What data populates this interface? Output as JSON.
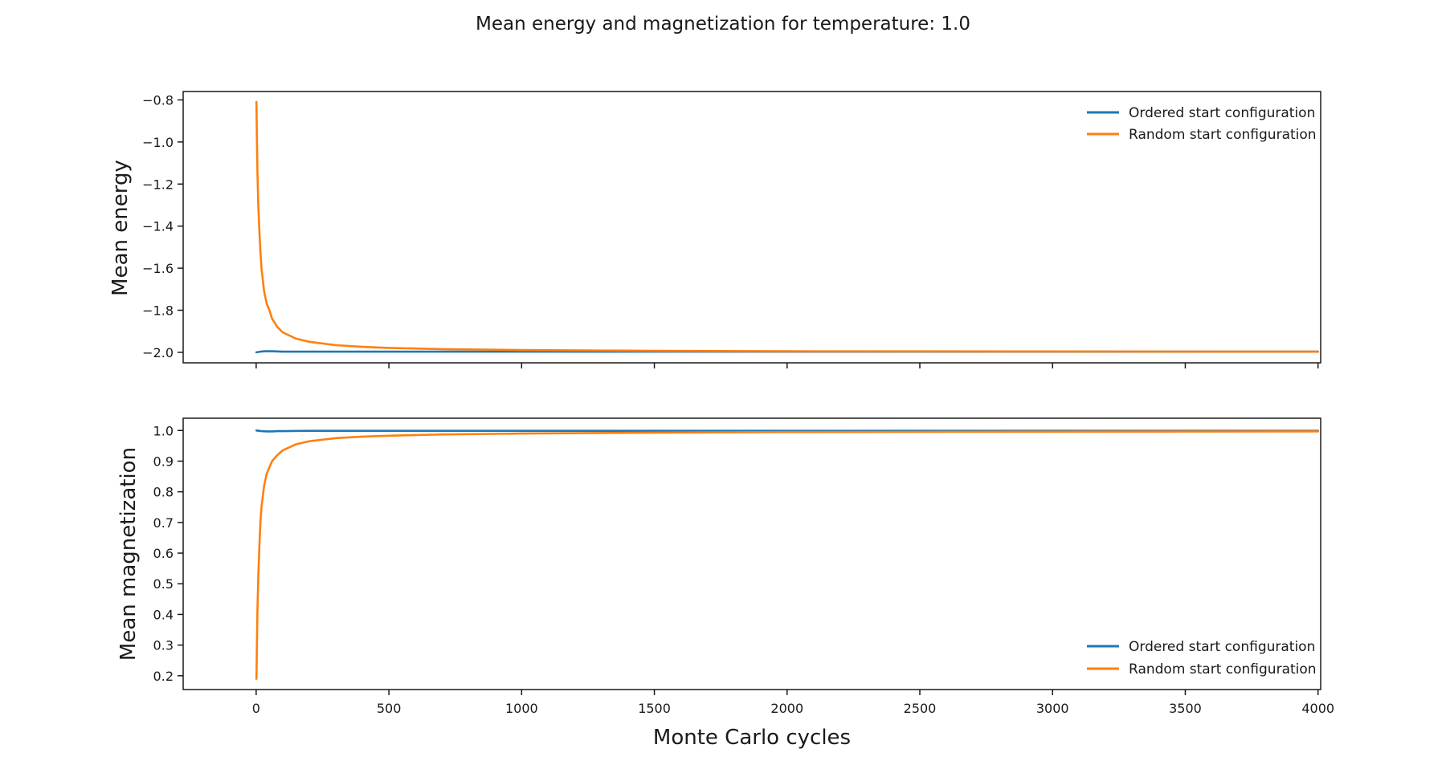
{
  "chart_data": {
    "title": "Mean energy and magnetization for temperature: 1.0",
    "xlabel": "Monte Carlo cycles",
    "xlim": [
      -275,
      4010
    ],
    "xticks": [
      0,
      500,
      1000,
      1500,
      2000,
      2500,
      3000,
      3500,
      4000
    ],
    "xtick_labels": [
      "0",
      "500",
      "1000",
      "1500",
      "2000",
      "2500",
      "3000",
      "3500",
      "4000"
    ],
    "colors": {
      "ordered": "#1f77b4",
      "random": "#ff7f0e"
    },
    "subplots": [
      {
        "type": "line",
        "ylabel": "Mean energy",
        "ylim": [
          -2.05,
          -0.76
        ],
        "yticks": [
          -2.0,
          -1.8,
          -1.6,
          -1.4,
          -1.2,
          -1.0,
          -0.8
        ],
        "ytick_labels": [
          "−2.0",
          "−1.8",
          "−1.6",
          "−1.4",
          "−1.2",
          "−1.0",
          "−0.8"
        ],
        "legend_position": "upper right",
        "grid": false,
        "series": [
          {
            "name": "Ordered start configuration",
            "color": "#1f77b4",
            "x": [
              1,
              10,
              20,
              40,
              60,
              80,
              100,
              150,
              200,
              500,
              1000,
              2000,
              3000,
              4000
            ],
            "y": [
              -2.0,
              -1.998,
              -1.996,
              -1.995,
              -1.995,
              -1.996,
              -1.997,
              -1.997,
              -1.997,
              -1.997,
              -1.997,
              -1.997,
              -1.997,
              -1.997
            ]
          },
          {
            "name": "Random start configuration",
            "color": "#ff7f0e",
            "x": [
              1,
              3,
              5,
              8,
              12,
              16,
              20,
              30,
              40,
              50,
              60,
              80,
              100,
              150,
              200,
              300,
              400,
              500,
              700,
              1000,
              1500,
              2000,
              3000,
              4000
            ],
            "y": [
              -0.81,
              -1.0,
              -1.15,
              -1.3,
              -1.42,
              -1.52,
              -1.6,
              -1.71,
              -1.77,
              -1.8,
              -1.84,
              -1.88,
              -1.905,
              -1.935,
              -1.95,
              -1.966,
              -1.974,
              -1.979,
              -1.985,
              -1.989,
              -1.993,
              -1.995,
              -1.996,
              -1.997
            ]
          }
        ]
      },
      {
        "type": "line",
        "ylabel": "Mean magnetization",
        "ylim": [
          0.155,
          1.04
        ],
        "yticks": [
          0.2,
          0.3,
          0.4,
          0.5,
          0.6,
          0.7,
          0.8,
          0.9,
          1.0
        ],
        "ytick_labels": [
          "0.2",
          "0.3",
          "0.4",
          "0.5",
          "0.6",
          "0.7",
          "0.8",
          "0.9",
          "1.0"
        ],
        "legend_position": "lower right",
        "grid": false,
        "series": [
          {
            "name": "Ordered start configuration",
            "color": "#1f77b4",
            "x": [
              1,
              10,
              20,
              40,
              60,
              80,
              100,
              200,
              500,
              1000,
              2000,
              3000,
              4000
            ],
            "y": [
              1.0,
              0.999,
              0.998,
              0.997,
              0.997,
              0.998,
              0.998,
              0.999,
              0.999,
              0.999,
              0.999,
              0.999,
              0.999
            ]
          },
          {
            "name": "Random start configuration",
            "color": "#ff7f0e",
            "x": [
              1,
              3,
              5,
              8,
              12,
              16,
              20,
              30,
              40,
              50,
              60,
              80,
              100,
              150,
              200,
              300,
              400,
              500,
              700,
              1000,
              1500,
              2000,
              3000,
              4000
            ],
            "y": [
              0.19,
              0.31,
              0.42,
              0.52,
              0.62,
              0.7,
              0.75,
              0.82,
              0.86,
              0.88,
              0.9,
              0.92,
              0.935,
              0.955,
              0.965,
              0.975,
              0.98,
              0.983,
              0.987,
              0.99,
              0.993,
              0.995,
              0.996,
              0.997
            ]
          }
        ]
      }
    ]
  }
}
